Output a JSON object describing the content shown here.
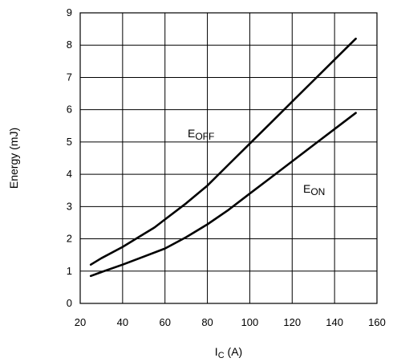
{
  "chart_data": {
    "type": "line",
    "xlabel_main": "I",
    "xlabel_sub": "C",
    "xlabel_rest": " (A)",
    "ylabel": "Energy (mJ)",
    "xlim": [
      20,
      160
    ],
    "ylim": [
      0,
      9
    ],
    "xticks": [
      20,
      40,
      60,
      80,
      100,
      120,
      140,
      160
    ],
    "yticks": [
      0,
      1,
      2,
      3,
      4,
      5,
      6,
      7,
      8,
      9
    ],
    "grid": true,
    "series": [
      {
        "label_main": "E",
        "label_sub": "OFF",
        "x": [
          25,
          30,
          40,
          50,
          55,
          60,
          70,
          80,
          90,
          100,
          110,
          120,
          130,
          140,
          150
        ],
        "y": [
          1.2,
          1.4,
          1.75,
          2.15,
          2.35,
          2.6,
          3.1,
          3.65,
          4.3,
          4.95,
          5.6,
          6.25,
          6.9,
          7.55,
          8.2
        ]
      },
      {
        "label_main": "E",
        "label_sub": "ON",
        "x": [
          25,
          30,
          40,
          50,
          60,
          70,
          80,
          90,
          100,
          110,
          120,
          130,
          140,
          150
        ],
        "y": [
          0.85,
          0.97,
          1.2,
          1.45,
          1.7,
          2.05,
          2.45,
          2.9,
          3.4,
          3.9,
          4.4,
          4.9,
          5.4,
          5.9
        ]
      }
    ]
  }
}
